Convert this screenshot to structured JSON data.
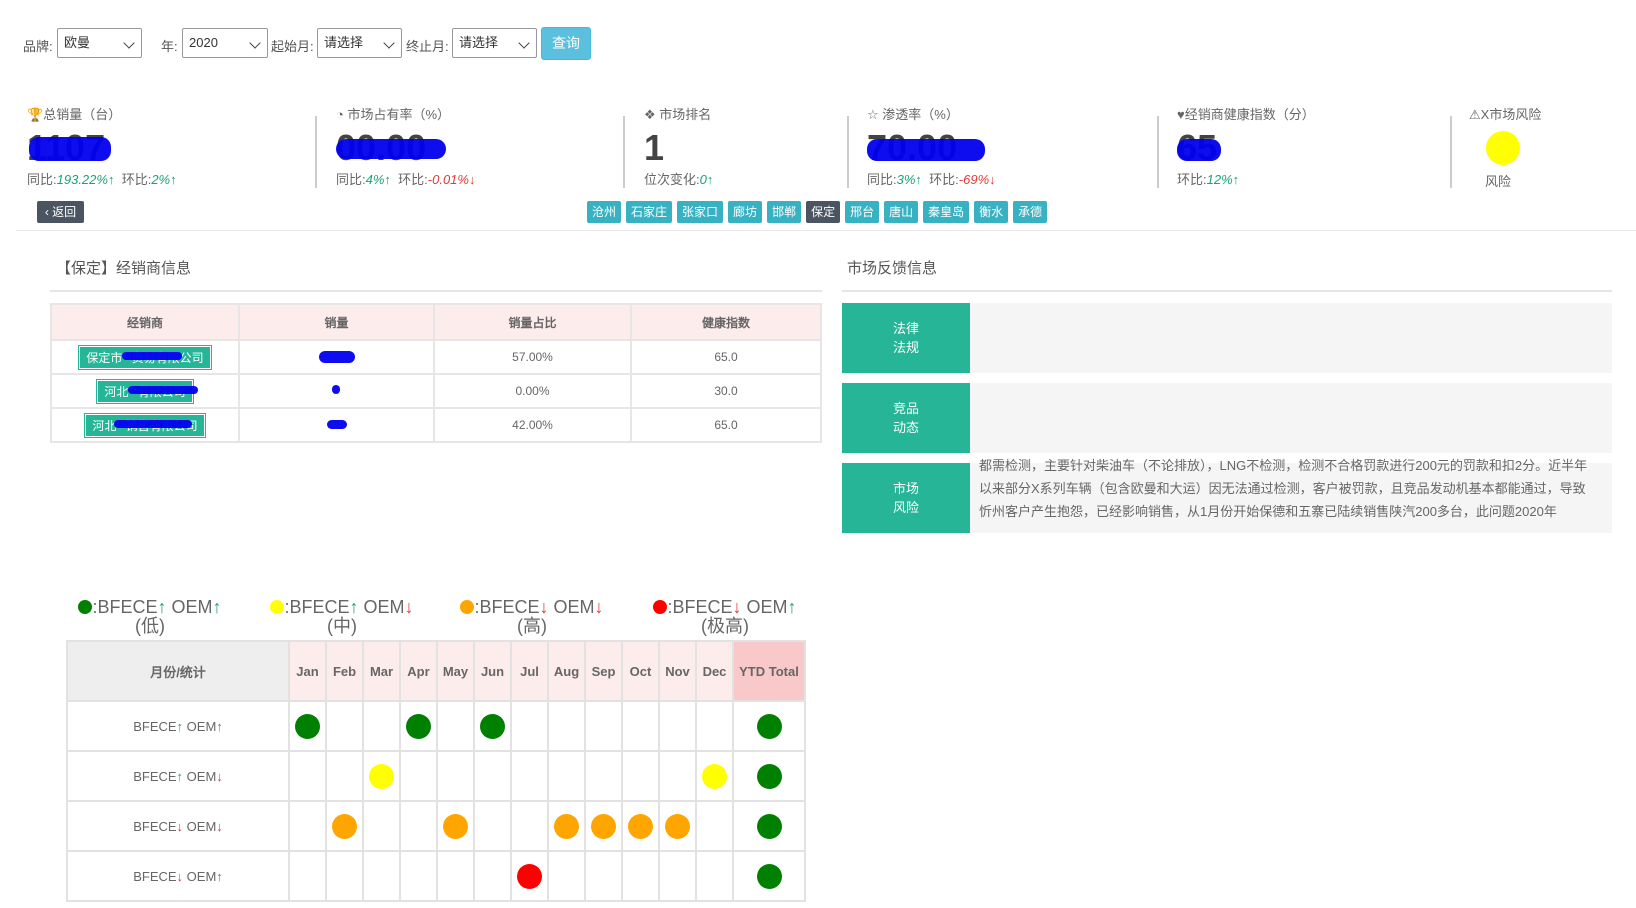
{
  "filters": {
    "brand_label": "品牌:",
    "brand_value": "欧曼",
    "year_label": "年:",
    "year_value": "2020",
    "start_label": "起始月:",
    "start_value": "请选择",
    "end_label": "终止月:",
    "end_value": "请选择",
    "query_label": "查询"
  },
  "kpis": {
    "total_sales": {
      "label": "总销量（台）",
      "value": "1107",
      "yoy_label": "同比:",
      "yoy": "193.22%",
      "mom_label": "环比:",
      "mom": "2%"
    },
    "market_share": {
      "label": "市场占有率（%）",
      "value": "00.00",
      "yoy_label": "同比:",
      "yoy": "4%",
      "mom_label": "环比:",
      "mom": "-0.01%"
    },
    "rank": {
      "label": "市场排名",
      "value": "1",
      "change_label": "位次变化:",
      "change": "0"
    },
    "penetration": {
      "label": "渗透率（%）",
      "value": "70.00",
      "yoy_label": "同比:",
      "yoy": "3%",
      "mom_label": "环比:",
      "mom": "-69%"
    },
    "health": {
      "label": "经销商健康指数（分）",
      "value": "65",
      "mom_label": "环比:",
      "mom": "12%"
    },
    "risk": {
      "label": "X市场风险",
      "sub": "风险",
      "color": "#ffff00"
    }
  },
  "back_label": "返回",
  "cities": [
    "沧州",
    "石家庄",
    "张家口",
    "廊坊",
    "邯郸",
    "保定",
    "邢台",
    "唐山",
    "秦皇岛",
    "衡水",
    "承德"
  ],
  "active_city": "保定",
  "dealer_section": {
    "title": "【保定】经销商信息",
    "headers": [
      "经销商",
      "销量",
      "销量占比",
      "健康指数"
    ],
    "rows": [
      {
        "name": "保定市**贸易有限公司",
        "share": "57.00%",
        "health": "65.0"
      },
      {
        "name": "河北**有限公司",
        "share": "0.00%",
        "health": "30.0"
      },
      {
        "name": "河北**销售有限公司",
        "share": "42.00%",
        "health": "65.0"
      }
    ]
  },
  "feedback_section": {
    "title": "市场反馈信息",
    "items": [
      {
        "head1": "法律",
        "head2": "法规",
        "text": ""
      },
      {
        "head1": "竞品",
        "head2": "动态",
        "text": ""
      },
      {
        "head1": "市场",
        "head2": "风险",
        "text": "都需检测，主要针对柴油车（不论排放），LNG不检测，检测不合格罚款进行200元的罚款和扣2分。近半年以来部分X系列车辆（包含欧曼和大运）因无法通过检测，客户被罚款，且竞品发动机基本都能通过，导致忻州客户产生抱怨，已经影响销售，从1月份开始保德和五寨已陆续销售陕汽200多台，此问题2020年"
      }
    ]
  },
  "legend": [
    {
      "color": "#008000",
      "text": ":BFECE",
      "a1": "↑",
      "t2": "OEM",
      "a2": "↑",
      "level": "(低)"
    },
    {
      "color": "#ffff00",
      "text": ":BFECE",
      "a1": "↑",
      "t2": "OEM",
      "a2": "↓",
      "level": "(中)"
    },
    {
      "color": "#ffa500",
      "text": ":BFECE",
      "a1": "↓",
      "t2": "OEM",
      "a2": "↓",
      "level": "(高)"
    },
    {
      "color": "#ff0000",
      "text": ":BFECE",
      "a1": "↓",
      "t2": "OEM",
      "a2": "↑",
      "level": "(极高)"
    }
  ],
  "matrix": {
    "corner": "月份/统计",
    "months": [
      "Jan",
      "Feb",
      "Mar",
      "Apr",
      "May",
      "Jun",
      "Jul",
      "Aug",
      "Sep",
      "Oct",
      "Nov",
      "Dec"
    ],
    "ytd": "YTD Total",
    "rows": [
      {
        "label": "BFECE",
        "a1": "↑",
        "label2": "OEM",
        "a2": "↑",
        "cells": [
          "g",
          "",
          "",
          "g",
          "",
          "g",
          "",
          "",
          "",
          "",
          "",
          ""
        ],
        "ytd": "g"
      },
      {
        "label": "BFECE",
        "a1": "↑",
        "label2": "OEM",
        "a2": "↓",
        "cells": [
          "",
          "",
          "y",
          "",
          "",
          "",
          "",
          "",
          "",
          "",
          "",
          "y"
        ],
        "ytd": "g"
      },
      {
        "label": "BFECE",
        "a1": "↓",
        "label2": "OEM",
        "a2": "↓",
        "cells": [
          "",
          "o",
          "",
          "",
          "o",
          "",
          "",
          "o",
          "o",
          "o",
          "o",
          ""
        ],
        "ytd": "g"
      },
      {
        "label": "BFECE",
        "a1": "↓",
        "label2": "OEM",
        "a2": "↑",
        "cells": [
          "",
          "",
          "",
          "",
          "",
          "",
          "r",
          "",
          "",
          "",
          "",
          ""
        ],
        "ytd": "g"
      }
    ]
  }
}
